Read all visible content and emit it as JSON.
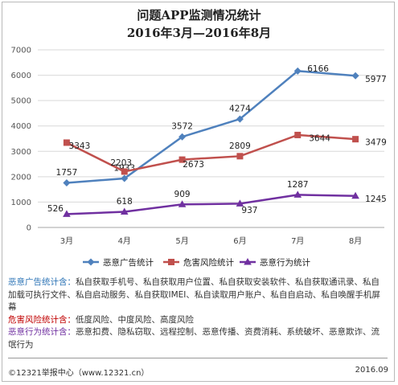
{
  "header": {
    "title": "问题APP监测情况统计",
    "subtitle": "2016年3月—2016年8月"
  },
  "chart_data": {
    "type": "line",
    "categories": [
      "3月",
      "4月",
      "5月",
      "6月",
      "7月",
      "8月"
    ],
    "ylim": [
      0,
      7000
    ],
    "yticks": [
      "0",
      "1000",
      "2000",
      "3000",
      "4000",
      "5000",
      "6000",
      "7000"
    ],
    "grid": true,
    "legend_position": "bottom",
    "series": [
      {
        "name": "恶意广告统计",
        "color": "#4f81bd",
        "marker": "diamond",
        "values": [
          1757,
          1933,
          3572,
          4274,
          6166,
          5977
        ],
        "labels": [
          "1757",
          "1933",
          "3572",
          "4274",
          "6166",
          "5977"
        ]
      },
      {
        "name": "危害风险统计",
        "color": "#c0504d",
        "marker": "square",
        "values": [
          3343,
          2203,
          2673,
          2809,
          3644,
          3479
        ],
        "labels": [
          "3343",
          "2203",
          "2673",
          "2809",
          "3644",
          "3479"
        ]
      },
      {
        "name": "恶意行为统计",
        "color": "#7030a0",
        "marker": "triangle",
        "values": [
          526,
          618,
          909,
          937,
          1287,
          1245
        ],
        "labels": [
          "526",
          "618",
          "909",
          "937",
          "1287",
          "1245"
        ]
      }
    ]
  },
  "notes": [
    {
      "label": "恶意广告统计含：",
      "text": "私自获取手机号、私自获取用户位置、私自获取安装软件、私自获取通讯录、私自加载可执行文件、私自启动服务、私自获取IMEI、私自读取用户账户、私自自启动、私自唤醒手机屏幕",
      "color": "#2e75b6"
    },
    {
      "label": "危害风险统计含：",
      "text": "低度风险、中度风险、高度风险",
      "color": "#c00000"
    },
    {
      "label": "恶意行为统计含：",
      "text": "恶意扣费、隐私窃取、远程控制、恶意传播、资费消耗、系统破坏、恶意欺诈、流氓行为",
      "color": "#7030a0"
    }
  ],
  "footer": {
    "source": "©12321举报中心（www.12321.cn）",
    "date": "2016.09"
  }
}
